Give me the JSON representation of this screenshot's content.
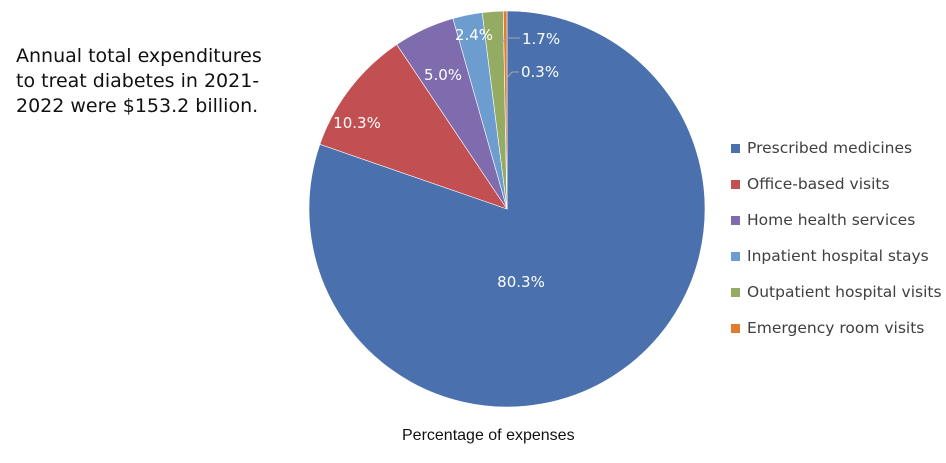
{
  "annotation": {
    "lines": [
      "Annual total expenditures",
      "to treat diabetes in 2021-",
      "2022 were $153.2 billion."
    ]
  },
  "chart_data": {
    "type": "pie",
    "title": "",
    "xlabel": "Percentage of expenses",
    "ylabel": "",
    "legend_position": "right",
    "start_angle_deg": 0,
    "direction": "clockwise",
    "categories": [
      "Prescribed medicines",
      "Office-based visits",
      "Home health services",
      "Inpatient hospital stays",
      "Outpatient hospital visits",
      "Emergency room visits"
    ],
    "values": [
      80.3,
      10.3,
      5.0,
      2.4,
      1.7,
      0.3
    ],
    "labels": [
      "80.3%",
      "10.3%",
      "5.0%",
      "2.4%",
      "1.7%",
      "0.3%"
    ],
    "colors": [
      "#4a71ad",
      "#c24f52",
      "#7f6caf",
      "#6d9ccf",
      "#93ab63",
      "#e07b2f"
    ]
  },
  "legend": {
    "items": [
      {
        "label": "Prescribed medicines",
        "color": "#4a71ad"
      },
      {
        "label": "Office-based visits",
        "color": "#c24f52"
      },
      {
        "label": "Home health services",
        "color": "#7f6caf"
      },
      {
        "label": "Inpatient hospital stays",
        "color": "#6d9ccf"
      },
      {
        "label": "Outpatient hospital visits",
        "color": "#93ab63"
      },
      {
        "label": "Emergency room visits",
        "color": "#e07b2f"
      }
    ]
  }
}
